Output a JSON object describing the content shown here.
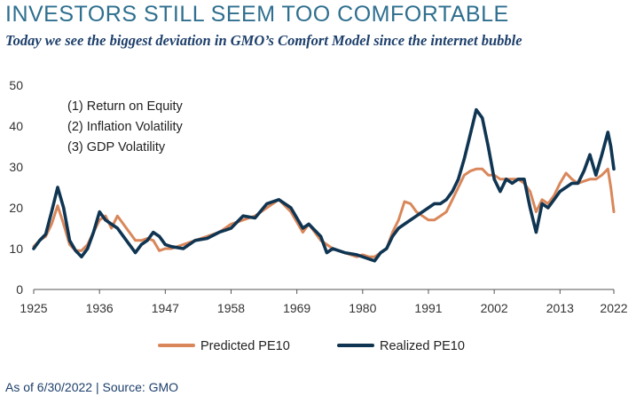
{
  "header": {
    "title": "INVESTORS STILL SEEM TOO COMFORTABLE",
    "subtitle": "Today we see the biggest deviation in GMO’s Comfort Model since the internet bubble"
  },
  "footer": {
    "source": "As of 6/30/2022 | Source: GMO"
  },
  "colors": {
    "predicted": "#d9875a",
    "realized": "#0f3552",
    "axis_text": "#333333",
    "grid": "#e3e3e3"
  },
  "chart_data": {
    "type": "line",
    "title": "",
    "xlabel": "",
    "ylabel": "",
    "xlim": [
      1925,
      2022
    ],
    "ylim": [
      0,
      50
    ],
    "x_ticks": [
      1925,
      1936,
      1947,
      1958,
      1969,
      1980,
      1991,
      2002,
      2013,
      2022
    ],
    "x_tick_labels": [
      "1925",
      "1936",
      "1947",
      "1958",
      "1969",
      "1980",
      "1991",
      "2002",
      "2013",
      "2022"
    ],
    "y_ticks": [
      0,
      10,
      20,
      30,
      40,
      50
    ],
    "y_tick_labels": [
      "0",
      "10",
      "20",
      "30",
      "40",
      "50"
    ],
    "grid": false,
    "legend_position": "bottom",
    "annotations": [
      "(1) Return on Equity",
      "(2) Inflation Volatility",
      "(3) GDP Volatility"
    ],
    "series": [
      {
        "name": "Predicted PE10",
        "color": "#d9875a",
        "points": [
          [
            1925,
            10.5
          ],
          [
            1926,
            12
          ],
          [
            1927,
            13
          ],
          [
            1928,
            16
          ],
          [
            1929,
            20.5
          ],
          [
            1930,
            16
          ],
          [
            1931,
            11
          ],
          [
            1932,
            9.5
          ],
          [
            1933,
            9.5
          ],
          [
            1934,
            11
          ],
          [
            1935,
            14
          ],
          [
            1936,
            17
          ],
          [
            1937,
            18
          ],
          [
            1938,
            15
          ],
          [
            1939,
            18
          ],
          [
            1940,
            16
          ],
          [
            1941,
            14
          ],
          [
            1942,
            12
          ],
          [
            1943,
            12
          ],
          [
            1944,
            12.5
          ],
          [
            1945,
            12
          ],
          [
            1946,
            9.5
          ],
          [
            1947,
            10
          ],
          [
            1948,
            10
          ],
          [
            1950,
            11
          ],
          [
            1952,
            12
          ],
          [
            1954,
            13
          ],
          [
            1956,
            14
          ],
          [
            1958,
            16
          ],
          [
            1960,
            17
          ],
          [
            1962,
            18
          ],
          [
            1964,
            20
          ],
          [
            1966,
            22
          ],
          [
            1968,
            19
          ],
          [
            1970,
            14
          ],
          [
            1971,
            16
          ],
          [
            1973,
            12
          ],
          [
            1975,
            10
          ],
          [
            1977,
            9
          ],
          [
            1979,
            8
          ],
          [
            1980,
            8.5
          ],
          [
            1981,
            8
          ],
          [
            1982,
            8
          ],
          [
            1983,
            9
          ],
          [
            1984,
            10
          ],
          [
            1985,
            14
          ],
          [
            1986,
            17
          ],
          [
            1987,
            21.5
          ],
          [
            1988,
            21
          ],
          [
            1989,
            19
          ],
          [
            1990,
            18
          ],
          [
            1991,
            17
          ],
          [
            1992,
            17
          ],
          [
            1993,
            18
          ],
          [
            1994,
            19
          ],
          [
            1995,
            22
          ],
          [
            1996,
            25
          ],
          [
            1997,
            28
          ],
          [
            1998,
            29
          ],
          [
            1999,
            29.5
          ],
          [
            2000,
            29.5
          ],
          [
            2001,
            28
          ],
          [
            2002,
            28
          ],
          [
            2003,
            27
          ],
          [
            2004,
            27
          ],
          [
            2005,
            27
          ],
          [
            2006,
            27
          ],
          [
            2007,
            26
          ],
          [
            2008,
            24
          ],
          [
            2009,
            19
          ],
          [
            2010,
            22
          ],
          [
            2011,
            21
          ],
          [
            2012,
            23
          ],
          [
            2013,
            26
          ],
          [
            2014,
            28.5
          ],
          [
            2015,
            27
          ],
          [
            2016,
            26
          ],
          [
            2017,
            26.5
          ],
          [
            2018,
            27
          ],
          [
            2019,
            27
          ],
          [
            2020,
            28
          ],
          [
            2021,
            29.5
          ],
          [
            2021.5,
            25
          ],
          [
            2022,
            19
          ]
        ]
      },
      {
        "name": "Realized PE10",
        "color": "#0f3552",
        "points": [
          [
            1925,
            10
          ],
          [
            1926,
            12
          ],
          [
            1927,
            13.5
          ],
          [
            1928,
            19
          ],
          [
            1929,
            25
          ],
          [
            1930,
            20
          ],
          [
            1931,
            12
          ],
          [
            1932,
            9.5
          ],
          [
            1933,
            8
          ],
          [
            1934,
            10
          ],
          [
            1935,
            14
          ],
          [
            1936,
            19
          ],
          [
            1937,
            17
          ],
          [
            1938,
            16
          ],
          [
            1939,
            15
          ],
          [
            1940,
            13
          ],
          [
            1941,
            11
          ],
          [
            1942,
            9
          ],
          [
            1943,
            11
          ],
          [
            1944,
            12
          ],
          [
            1945,
            14
          ],
          [
            1946,
            13
          ],
          [
            1947,
            11
          ],
          [
            1948,
            10.5
          ],
          [
            1950,
            10
          ],
          [
            1952,
            12
          ],
          [
            1954,
            12.5
          ],
          [
            1956,
            14
          ],
          [
            1958,
            15
          ],
          [
            1960,
            18
          ],
          [
            1962,
            17.5
          ],
          [
            1964,
            21
          ],
          [
            1966,
            22
          ],
          [
            1968,
            20
          ],
          [
            1970,
            15
          ],
          [
            1971,
            16
          ],
          [
            1973,
            13
          ],
          [
            1974,
            9
          ],
          [
            1975,
            10
          ],
          [
            1977,
            9
          ],
          [
            1979,
            8.5
          ],
          [
            1980,
            8
          ],
          [
            1982,
            7
          ],
          [
            1983,
            9
          ],
          [
            1984,
            10
          ],
          [
            1985,
            13
          ],
          [
            1986,
            15
          ],
          [
            1987,
            16
          ],
          [
            1988,
            17
          ],
          [
            1989,
            18
          ],
          [
            1990,
            19
          ],
          [
            1991,
            20
          ],
          [
            1992,
            21
          ],
          [
            1993,
            21
          ],
          [
            1994,
            22
          ],
          [
            1995,
            24
          ],
          [
            1996,
            27
          ],
          [
            1997,
            32
          ],
          [
            1998,
            38
          ],
          [
            1999,
            44
          ],
          [
            2000,
            42
          ],
          [
            2001,
            35
          ],
          [
            2002,
            27
          ],
          [
            2003,
            24
          ],
          [
            2004,
            27
          ],
          [
            2005,
            26
          ],
          [
            2006,
            27
          ],
          [
            2007,
            27
          ],
          [
            2008,
            20
          ],
          [
            2009,
            14
          ],
          [
            2010,
            21
          ],
          [
            2011,
            20
          ],
          [
            2012,
            22
          ],
          [
            2013,
            24
          ],
          [
            2014,
            25
          ],
          [
            2015,
            26
          ],
          [
            2016,
            26
          ],
          [
            2017,
            29
          ],
          [
            2018,
            33
          ],
          [
            2019,
            28
          ],
          [
            2020,
            33
          ],
          [
            2021,
            38.5
          ],
          [
            2021.5,
            35
          ],
          [
            2022,
            29.5
          ]
        ]
      }
    ]
  }
}
